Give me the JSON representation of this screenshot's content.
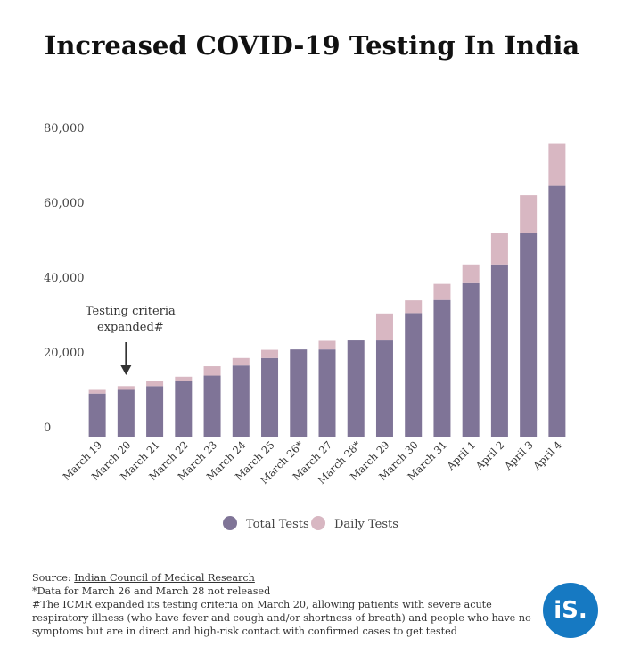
{
  "chart_data": {
    "type": "bar",
    "stacked": true,
    "title": "Increased COVID-19 Testing In India",
    "categories": [
      "March 19",
      "March 20",
      "March 21",
      "March 22",
      "March 23",
      "March 24",
      "March 25",
      "March 26*",
      "March 27",
      "March 28*",
      "March 29",
      "March 30",
      "March 31",
      "April 1",
      "April 2",
      "April 3",
      "April 4"
    ],
    "series": [
      {
        "name": "Total Tests",
        "color": "#7f7497",
        "values": [
          11500,
          12500,
          13500,
          15000,
          16300,
          19000,
          21000,
          23300,
          23300,
          25700,
          25700,
          33000,
          36500,
          41000,
          46000,
          54500,
          67000
        ]
      },
      {
        "name": "Daily Tests",
        "color": "#d8b7c2",
        "values": [
          1000,
          1000,
          1300,
          1000,
          2500,
          2000,
          2200,
          0,
          2300,
          0,
          7200,
          3400,
          4300,
          5000,
          8500,
          10000,
          11200
        ]
      }
    ],
    "ylim": [
      0,
      80000
    ],
    "yticks": [
      0,
      20000,
      40000,
      60000,
      80000
    ],
    "ytick_labels": [
      "0",
      "20,000",
      "40,000",
      "60,000",
      "80,000"
    ],
    "grid": false,
    "legend_position": "bottom-center",
    "annotation": {
      "line1": "Testing criteria",
      "line2": "expanded#",
      "category": "March 20"
    }
  },
  "notes": {
    "source_prefix": "Source: ",
    "source_link": "Indian Council of Medical Research",
    "line2": "*Data for March 26 and March 28 not released",
    "line3": "#The ICMR expanded its testing criteria on March 20, allowing patients with severe acute respiratory illness (who have fever and cough and/or shortness of breath) and people who have no symptoms but are in direct and high-risk contact with confirmed cases to get tested"
  },
  "logo": {
    "text": "iS.",
    "color": "#1679c2"
  }
}
